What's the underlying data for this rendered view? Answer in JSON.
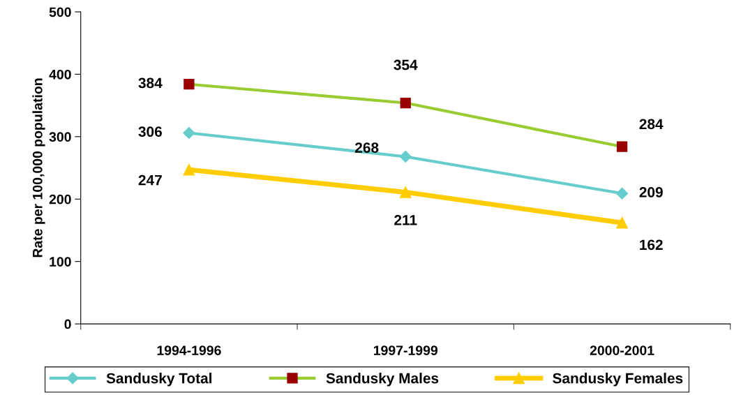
{
  "chart_data": {
    "type": "line",
    "ylabel": "Rate per 100,000 population",
    "categories": [
      "1994-1996",
      "1997-1999",
      "2000-2001"
    ],
    "series": [
      {
        "name": "Sandusky Total",
        "color": "#66cccc",
        "marker": "diamond",
        "values": [
          306,
          268,
          209
        ]
      },
      {
        "name": "Sandusky Males",
        "color": "#99cc33",
        "colors": [
          "#990000",
          "#990000",
          "#990000"
        ],
        "marker": "square",
        "values": [
          384,
          354,
          284
        ]
      },
      {
        "name": "Sandusky Females",
        "color": "#ffcc00",
        "marker": "triangle",
        "values": [
          247,
          211,
          162
        ]
      }
    ],
    "ylim": [
      0,
      500
    ],
    "yticks": [
      0,
      100,
      200,
      300,
      400,
      500
    ],
    "grid": false,
    "legend": "bottom",
    "data_labels": true
  }
}
